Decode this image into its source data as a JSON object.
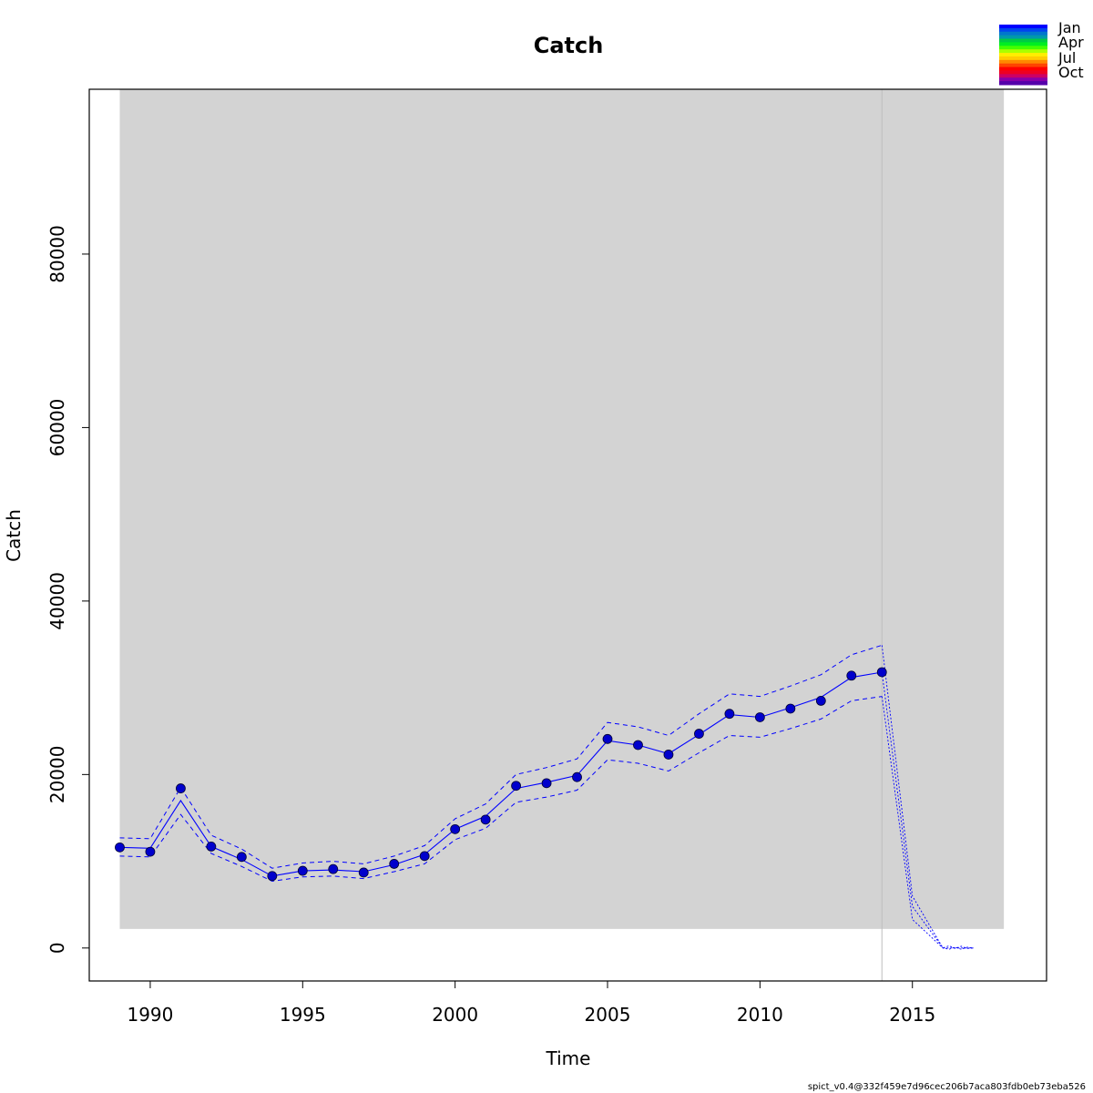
{
  "chart_data": {
    "type": "line",
    "title": "Catch",
    "xlabel": "Time",
    "ylabel": "Catch",
    "xlim": [
      1988,
      2019.4
    ],
    "ylim": [
      -3800,
      99000
    ],
    "x_ticks": [
      1990,
      1995,
      2000,
      2005,
      2010,
      2015
    ],
    "y_ticks": [
      0,
      20000,
      40000,
      60000,
      80000
    ],
    "grid": false,
    "shaded_region": {
      "x": [
        1989,
        2018
      ],
      "y": [
        2200,
        99000
      ],
      "color": "#d3d3d3"
    },
    "reference_line": {
      "x": 2014,
      "color": "#bebebe"
    },
    "series": [
      {
        "role": "observed",
        "x": [
          1989,
          1990,
          1991,
          1992,
          1993,
          1994,
          1995,
          1996,
          1997,
          1998,
          1999,
          2000,
          2001,
          2002,
          2003,
          2004,
          2005,
          2006,
          2007,
          2008,
          2009,
          2010,
          2011,
          2012,
          2013,
          2014
        ],
        "values": [
          11600,
          11100,
          18400,
          11700,
          10500,
          8300,
          8900,
          9100,
          8700,
          9700,
          10600,
          13700,
          14800,
          18700,
          19000,
          19700,
          24100,
          23400,
          22300,
          24700,
          27000,
          26600,
          27600,
          28500,
          31400,
          31800
        ]
      },
      {
        "role": "estimate",
        "x": [
          1989,
          1990,
          1991,
          1992,
          1993,
          1994,
          1995,
          1996,
          1997,
          1998,
          1999,
          2000,
          2001,
          2002,
          2003,
          2004,
          2005,
          2006,
          2007,
          2008,
          2009,
          2010,
          2011,
          2012,
          2013,
          2014
        ],
        "values": [
          11600,
          11500,
          17000,
          11700,
          10200,
          8300,
          8900,
          9000,
          8800,
          9600,
          10800,
          13700,
          15200,
          18400,
          19100,
          19900,
          23900,
          23400,
          22400,
          24600,
          26900,
          26600,
          27700,
          28900,
          31200,
          31800
        ]
      },
      {
        "role": "upper_ci",
        "x": [
          1989,
          1990,
          1991,
          1992,
          1993,
          1994,
          1995,
          1996,
          1997,
          1998,
          1999,
          2000,
          2001,
          2002,
          2003,
          2004,
          2005,
          2006,
          2007,
          2008,
          2009,
          2010,
          2011,
          2012,
          2013,
          2014
        ],
        "values": [
          12700,
          12600,
          18500,
          13000,
          11400,
          9200,
          9800,
          10000,
          9700,
          10600,
          11800,
          14900,
          16600,
          20000,
          20800,
          21800,
          26000,
          25500,
          24500,
          27000,
          29300,
          29000,
          30200,
          31500,
          33800,
          34900
        ]
      },
      {
        "role": "lower_ci",
        "x": [
          1989,
          1990,
          1991,
          1992,
          1993,
          1994,
          1995,
          1996,
          1997,
          1998,
          1999,
          2000,
          2001,
          2002,
          2003,
          2004,
          2005,
          2006,
          2007,
          2008,
          2009,
          2010,
          2011,
          2012,
          2013,
          2014
        ],
        "values": [
          10600,
          10500,
          15400,
          10900,
          9400,
          7700,
          8200,
          8300,
          8000,
          8800,
          9700,
          12500,
          13800,
          16800,
          17400,
          18200,
          21700,
          21300,
          20400,
          22500,
          24500,
          24300,
          25300,
          26400,
          28500,
          29000
        ]
      },
      {
        "role": "prediction",
        "x": [
          2014,
          2015,
          2016,
          2016.2,
          2016.4,
          2016.6,
          2016.8,
          2017
        ],
        "values": [
          31800,
          4800,
          0,
          0,
          0,
          0,
          0,
          0
        ]
      },
      {
        "role": "prediction_upper",
        "x": [
          2014,
          2015,
          2016,
          2016.2,
          2016.4,
          2016.6,
          2016.8,
          2017
        ],
        "values": [
          34900,
          6000,
          0,
          250,
          -50,
          200,
          -50,
          0
        ]
      },
      {
        "role": "prediction_lower",
        "x": [
          2014,
          2015,
          2016,
          2016.2,
          2016.4,
          2016.6,
          2016.8,
          2017
        ],
        "values": [
          29000,
          3300,
          0,
          -150,
          100,
          -150,
          100,
          0
        ]
      }
    ],
    "legend": {
      "placement": "top-right",
      "labels": [
        "Jan",
        "Apr",
        "Jul",
        "Oct"
      ],
      "colors": [
        "#0000ff",
        "#0044ee",
        "#0077cc",
        "#0099aa",
        "#00cc44",
        "#00ee22",
        "#44ff00",
        "#aaff00",
        "#ffee00",
        "#ffcc00",
        "#ff8800",
        "#ff4400",
        "#ff0000",
        "#ee0022",
        "#cc0066",
        "#8800aa",
        "#5500aa"
      ]
    },
    "colors": {
      "main": "#0000ee",
      "point": "#0000cc",
      "ci": "#0000ff",
      "shade": "#d3d3d3"
    }
  },
  "footer": "spict_v0.4@332f459e7d96cec206b7aca803fdb0eb73eba526"
}
